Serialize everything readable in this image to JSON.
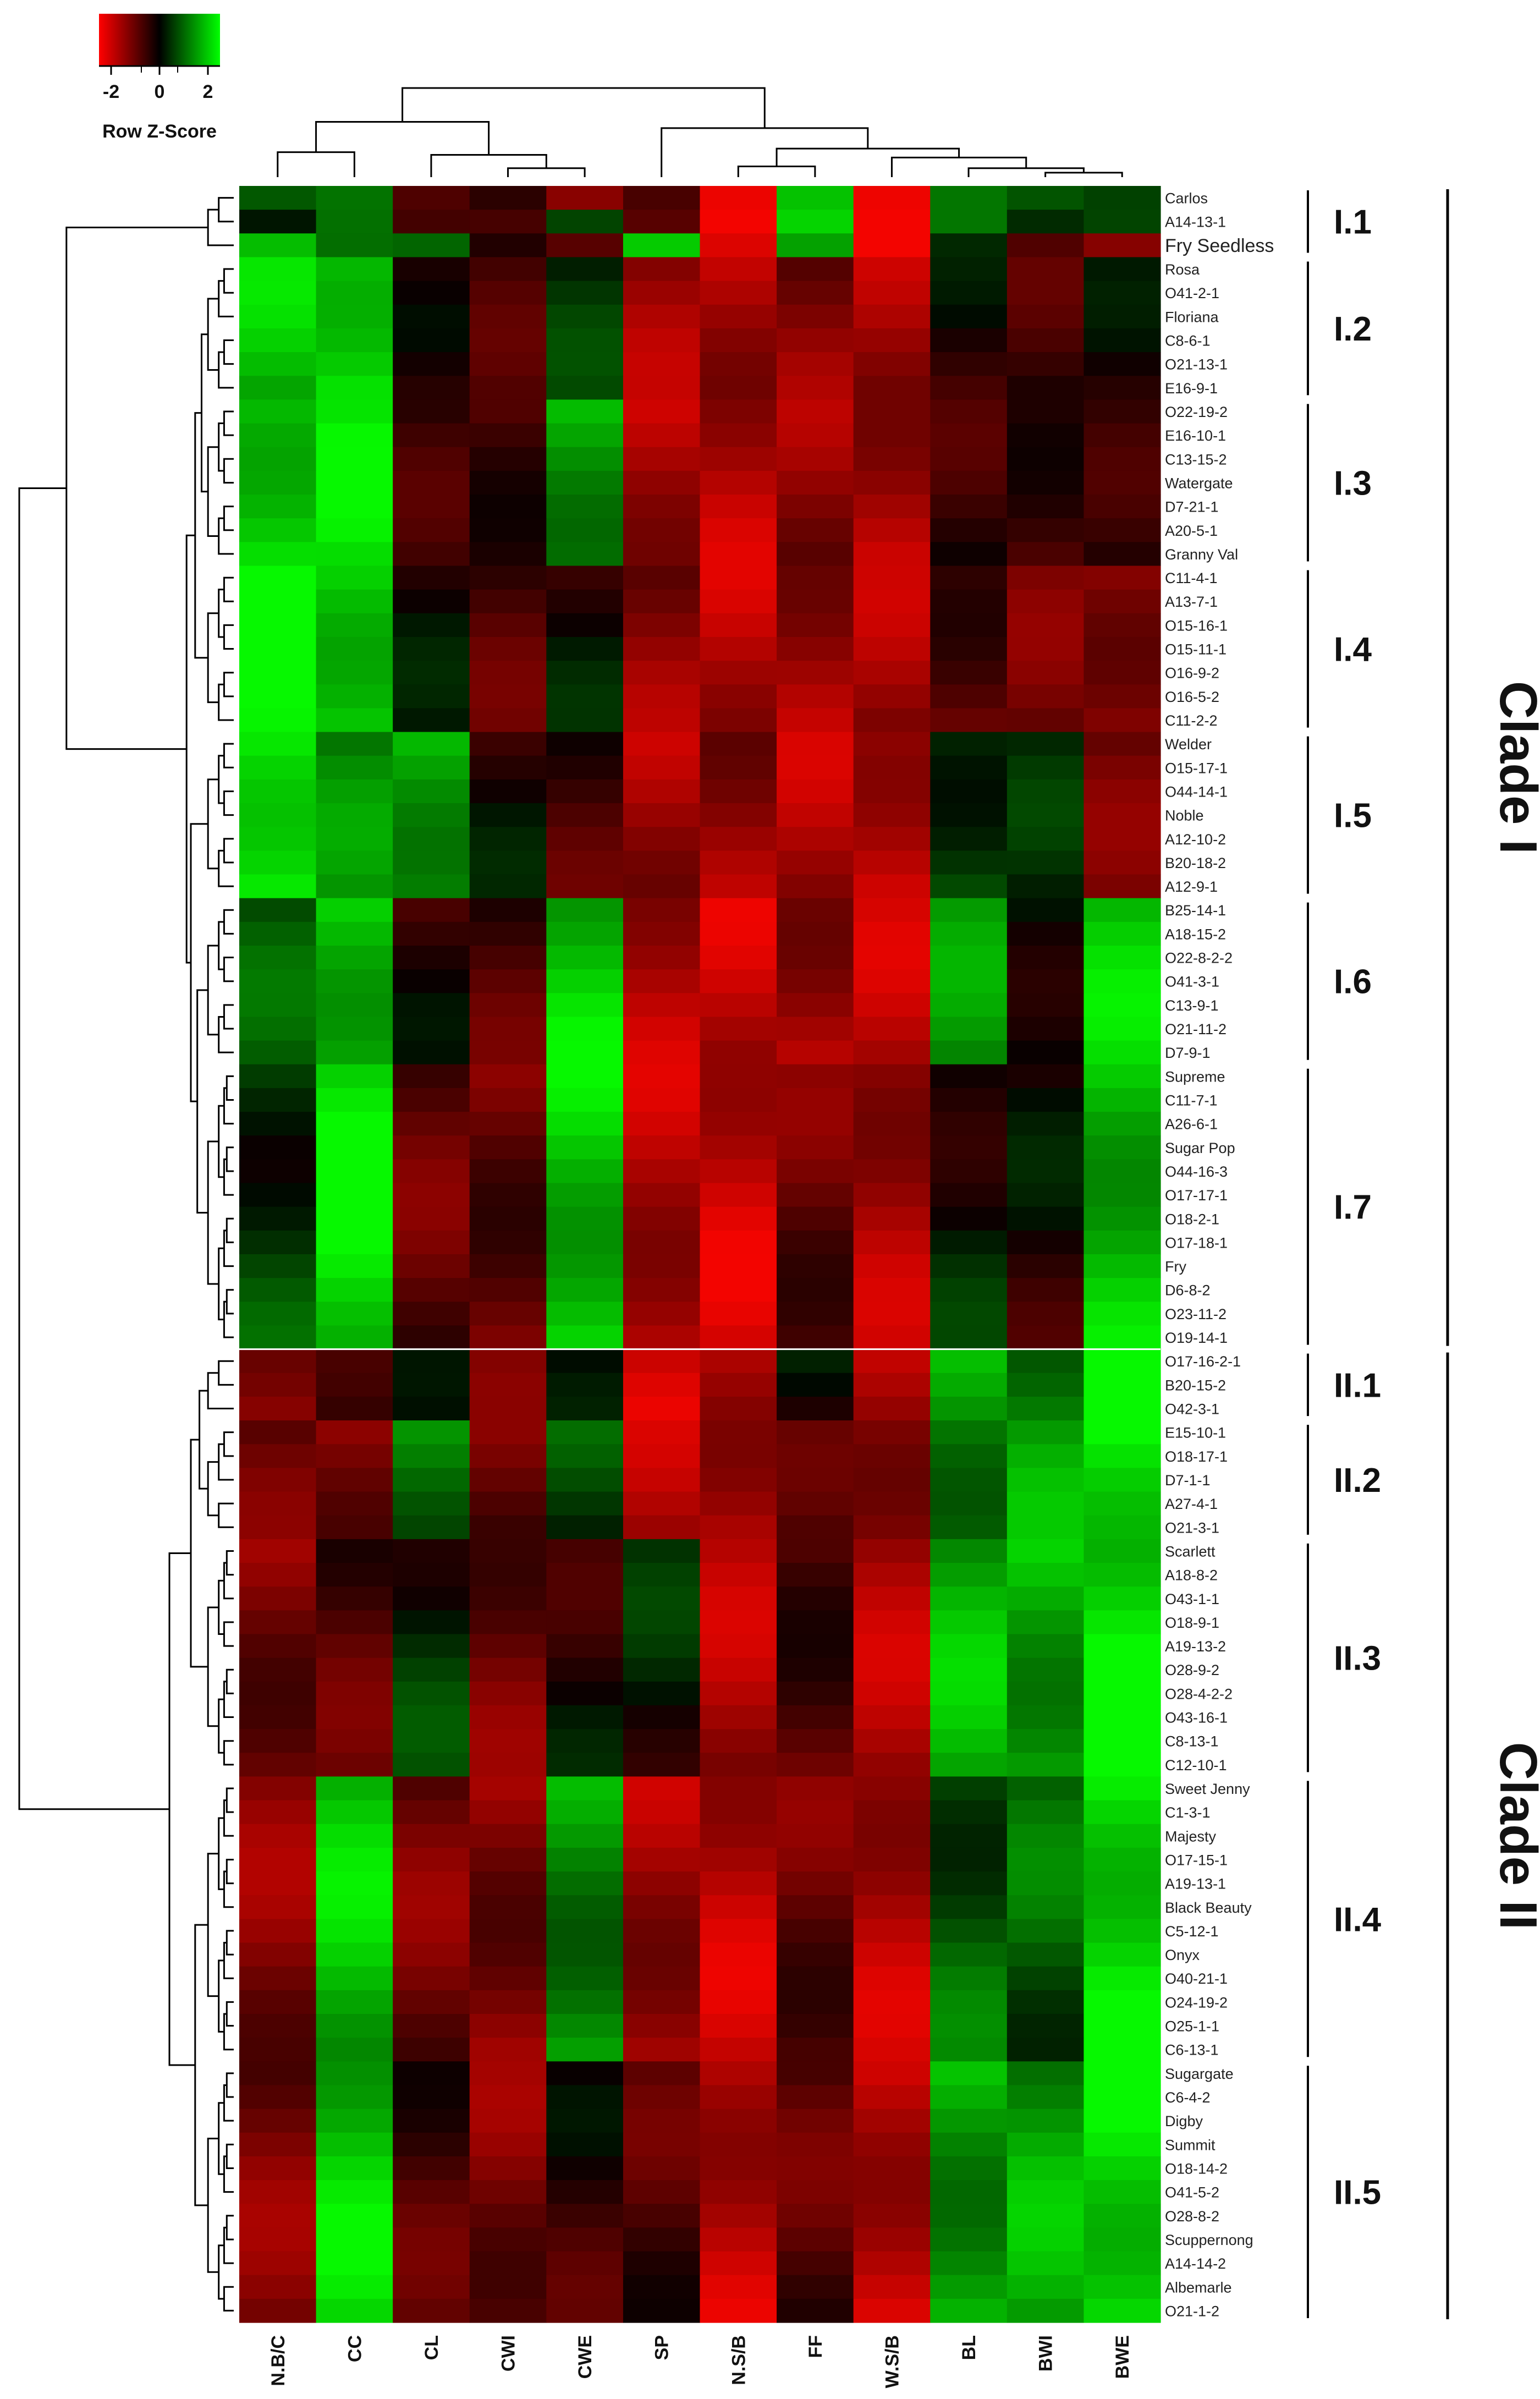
{
  "chart_data": {
    "type": "heatmap",
    "title": "",
    "color_key": {
      "label": "Row Z-Score",
      "ticks": [
        -2,
        0,
        2
      ],
      "low_color": "#ff0000",
      "mid_color": "#000000",
      "high_color": "#00ff00"
    },
    "columns": [
      "N.B/C",
      "CC",
      "CL",
      "CWI",
      "CWE",
      "SP",
      "N.S/B",
      "FF",
      "W.S/B",
      "BL",
      "BWI",
      "BWE"
    ],
    "rows": [
      "Carlos",
      "A14-13-1",
      "Fry Seedless",
      "Rosa",
      "O41-2-1",
      "Floriana",
      "C8-6-1",
      "O21-13-1",
      "E16-9-1",
      "O22-19-2",
      "E16-10-1",
      "C13-15-2",
      "Watergate",
      "D7-21-1",
      "A20-5-1",
      "Granny Val",
      "C11-4-1",
      "A13-7-1",
      "O15-16-1",
      "O15-11-1",
      "O16-9-2",
      "O16-5-2",
      "C11-2-2",
      "Welder",
      "O15-17-1",
      "O44-14-1",
      "Noble",
      "A12-10-2",
      "B20-18-2",
      "A12-9-1",
      "B25-14-1",
      "A18-15-2",
      "O22-8-2-2",
      "O41-3-1",
      "C13-9-1",
      "O21-11-2",
      "D7-9-1",
      "Supreme",
      "C11-7-1",
      "A26-6-1",
      "Sugar Pop",
      "O44-16-3",
      "O17-17-1",
      "O18-2-1",
      "O17-18-1",
      "Fry",
      "D6-8-2",
      "O23-11-2",
      "O19-14-1",
      "O17-16-2-1",
      "B20-15-2",
      "O42-3-1",
      "E15-10-1",
      "O18-17-1",
      "D7-1-1",
      "A27-4-1",
      "O21-3-1",
      "Scarlett",
      "A18-8-2",
      "O43-1-1",
      "O18-9-1",
      "A19-13-2",
      "O28-9-2",
      "O28-4-2-2",
      "O43-16-1",
      "C8-13-1",
      "C12-10-1",
      "Sweet Jenny",
      "C1-3-1",
      "Majesty",
      "O17-15-1",
      "A19-13-1",
      "Black Beauty",
      "C5-12-1",
      "Onyx",
      "O40-21-1",
      "O24-19-2",
      "O25-1-1",
      "C6-13-1",
      "Sugargate",
      "C6-4-2",
      "Digby",
      "Summit",
      "O18-14-2",
      "O41-5-2",
      "O28-8-2",
      "Scuppernong",
      "A14-14-2",
      "Albemarle",
      "O21-1-2"
    ],
    "subclades": [
      {
        "label": "I.1",
        "first_row": 0,
        "last_row": 2
      },
      {
        "label": "I.2",
        "first_row": 3,
        "last_row": 8
      },
      {
        "label": "I.3",
        "first_row": 9,
        "last_row": 15
      },
      {
        "label": "I.4",
        "first_row": 16,
        "last_row": 22
      },
      {
        "label": "I.5",
        "first_row": 23,
        "last_row": 29
      },
      {
        "label": "I.6",
        "first_row": 30,
        "last_row": 36
      },
      {
        "label": "I.7",
        "first_row": 37,
        "last_row": 48
      },
      {
        "label": "II.1",
        "first_row": 49,
        "last_row": 51
      },
      {
        "label": "II.2",
        "first_row": 52,
        "last_row": 56
      },
      {
        "label": "II.3",
        "first_row": 57,
        "last_row": 66
      },
      {
        "label": "II.4",
        "first_row": 67,
        "last_row": 78
      },
      {
        "label": "II.5",
        "first_row": 79,
        "last_row": 89
      }
    ],
    "clades": [
      {
        "label": "Clade I",
        "first_row": 0,
        "last_row": 48
      },
      {
        "label": "Clade II",
        "first_row": 49,
        "last_row": 89
      }
    ],
    "block_values": {
      "I.1": [
        [
          0.8,
          0.9,
          -0.4,
          -0.8,
          -0.8,
          -1.2,
          -1.8,
          1.4,
          -2.0,
          0.9,
          0.8,
          0.7
        ],
        [
          -0.1,
          1.1,
          -0.5,
          -0.9,
          1.0,
          -1.3,
          -1.9,
          1.5,
          -2.1,
          0.7,
          0.6,
          0.5
        ],
        [
          1.4,
          1.3,
          0.8,
          -0.3,
          -0.6,
          1.6,
          -1.7,
          1.0,
          -2.0,
          -0.2,
          -0.3,
          -1.6
        ]
      ],
      "I.2": [
        1.7,
        2.2,
        -0.5,
        -0.4,
        0.2,
        -1.4,
        -1.6,
        -1.2,
        -1.5,
        -0.3,
        -0.4,
        -0.3
      ],
      "I.3": [
        2.1,
        2.0,
        -0.3,
        -0.6,
        1.5,
        -1.6,
        -1.7,
        -1.3,
        -1.6,
        -0.3,
        -0.6,
        -0.2
      ],
      "I.4": [
        2.3,
        2.1,
        -0.2,
        -0.6,
        -0.1,
        -1.3,
        -1.7,
        -1.5,
        -1.5,
        -0.8,
        -0.9,
        -1.4
      ],
      "I.5": [
        2.4,
        1.1,
        1.6,
        -0.2,
        -0.5,
        -1.5,
        -1.4,
        -1.6,
        -1.8,
        0.6,
        0.1,
        -0.9
      ],
      "I.6": [
        0.6,
        1.9,
        -0.4,
        -0.6,
        1.9,
        -1.7,
        -1.8,
        -1.5,
        -1.7,
        1.2,
        0.2,
        1.8
      ],
      "I.7": [
        0.5,
        2.2,
        -0.8,
        -0.9,
        1.9,
        -1.7,
        -1.9,
        -0.9,
        -1.6,
        0.1,
        -0.2,
        1.8
      ],
      "II.1": [
        -1.5,
        -0.1,
        -0.4,
        -0.8,
        -0.3,
        -1.8,
        -1.7,
        0.1,
        -1.6,
        1.4,
        1.3,
        2.3
      ],
      "II.2": [
        -0.8,
        -1.2,
        1.1,
        -0.9,
        0.5,
        -1.6,
        -1.7,
        -0.5,
        -1.5,
        1.3,
        1.4,
        2.3
      ],
      "II.3": [
        -1.1,
        -0.7,
        0.3,
        -1.0,
        -0.2,
        0.1,
        -1.6,
        -0.7,
        -1.6,
        1.6,
        1.6,
        2.2
      ],
      "II.4": [
        -1.2,
        1.8,
        -1.0,
        -1.2,
        1.3,
        -1.5,
        -1.8,
        -0.9,
        -1.7,
        0.8,
        0.8,
        2.2
      ],
      "II.5": [
        -1.1,
        1.9,
        -0.6,
        -1.1,
        -0.4,
        -0.6,
        -1.8,
        -0.7,
        -1.8,
        1.5,
        1.5,
        2.2
      ]
    }
  }
}
